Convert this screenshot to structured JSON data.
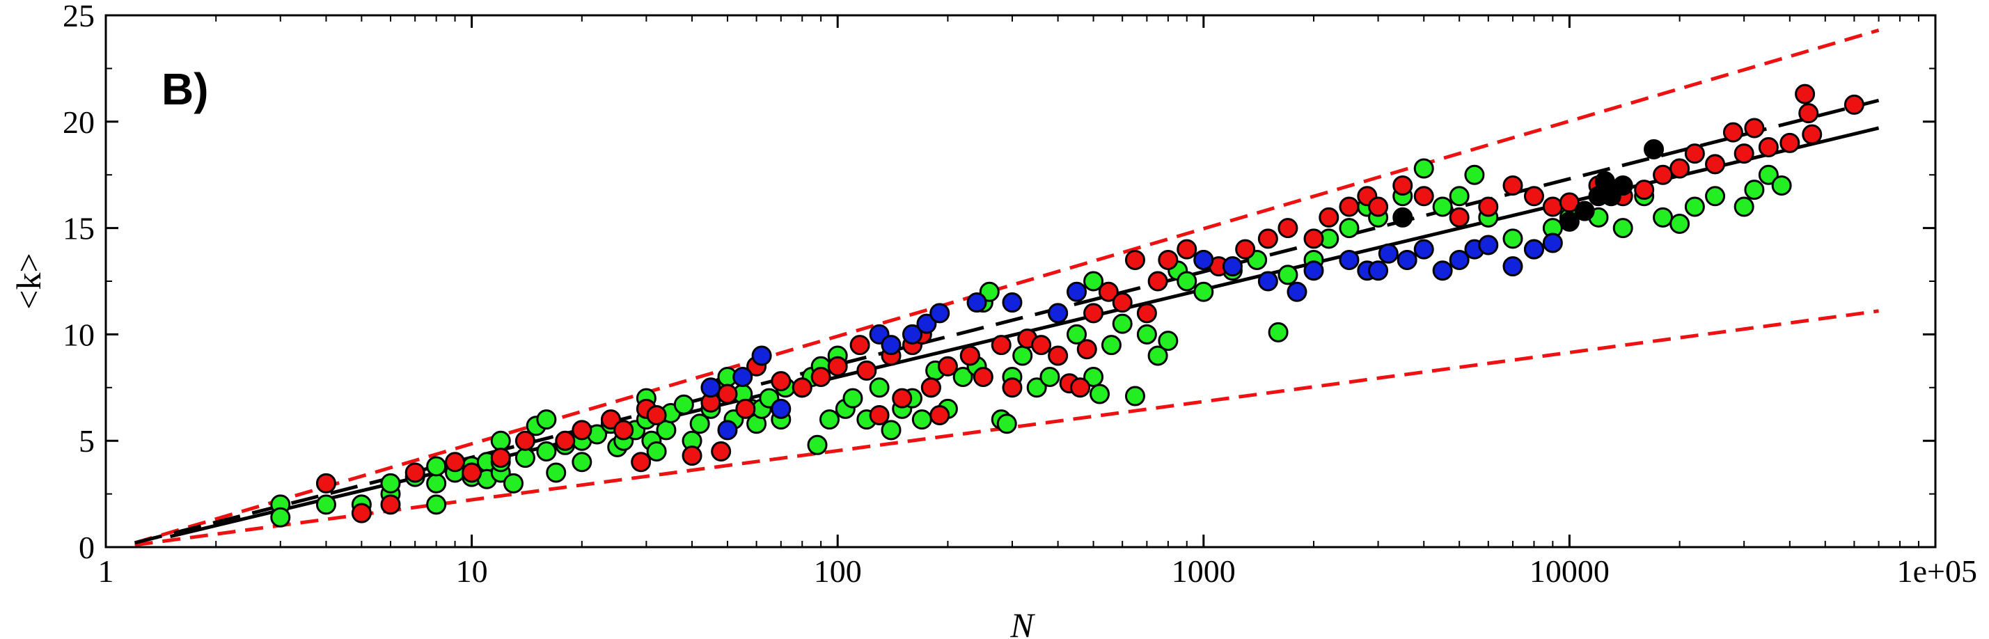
{
  "chart_data": {
    "type": "scatter",
    "panel_label": "B)",
    "xlabel": "N",
    "ylabel": "<k>",
    "x_scale": "log",
    "xlim": [
      1,
      100000
    ],
    "ylim": [
      0,
      25
    ],
    "x_ticks": [
      1,
      10,
      100,
      1000,
      10000,
      100000
    ],
    "x_tick_labels": [
      "1",
      "10",
      "100",
      "1000",
      "10000",
      "1e+05"
    ],
    "y_ticks": [
      0,
      5,
      10,
      15,
      20,
      25
    ],
    "y_tick_labels": [
      "0",
      "5",
      "10",
      "15",
      "20",
      "25"
    ],
    "grid": false,
    "colors": {
      "red": "#ee1111",
      "green": "#22ee22",
      "blue": "#1122dd",
      "black": "#000000",
      "dashed_red": "#ee1111"
    },
    "lines": [
      {
        "style": "dashed-red",
        "x": [
          1.2,
          70000
        ],
        "y": [
          0.2,
          24.3
        ]
      },
      {
        "style": "dashed-red",
        "x": [
          1.2,
          70000
        ],
        "y": [
          0.1,
          11.1
        ]
      },
      {
        "style": "dashed-black",
        "x": [
          1.2,
          70000
        ],
        "y": [
          0.2,
          21.0
        ]
      },
      {
        "style": "solid-black",
        "x": [
          1.5,
          70000
        ],
        "y": [
          0.5,
          19.7
        ]
      }
    ],
    "series": [
      {
        "color": "green",
        "points": [
          [
            3,
            2.0
          ],
          [
            3,
            1.4
          ],
          [
            4,
            2.0
          ],
          [
            5,
            2.0
          ],
          [
            6,
            2.5
          ],
          [
            6,
            3.0
          ],
          [
            7,
            3.3
          ],
          [
            8,
            2.0
          ],
          [
            8,
            3.0
          ],
          [
            8,
            3.8
          ],
          [
            9,
            3.5
          ],
          [
            10,
            3.3
          ],
          [
            10,
            3.8
          ],
          [
            11,
            4.0
          ],
          [
            11,
            3.2
          ],
          [
            12,
            3.5
          ],
          [
            12,
            4.0
          ],
          [
            12,
            5.0
          ],
          [
            13,
            3.0
          ],
          [
            14,
            4.2
          ],
          [
            15,
            5.7
          ],
          [
            16,
            6.0
          ],
          [
            16,
            4.5
          ],
          [
            17,
            3.5
          ],
          [
            18,
            4.8
          ],
          [
            20,
            4.0
          ],
          [
            20,
            5.0
          ],
          [
            22,
            5.3
          ],
          [
            24,
            5.8
          ],
          [
            25,
            4.7
          ],
          [
            26,
            5.0
          ],
          [
            28,
            5.5
          ],
          [
            30,
            6.0
          ],
          [
            30,
            7.0
          ],
          [
            31,
            5.0
          ],
          [
            32,
            4.5
          ],
          [
            34,
            5.5
          ],
          [
            35,
            6.3
          ],
          [
            38,
            6.7
          ],
          [
            40,
            5.0
          ],
          [
            42,
            5.8
          ],
          [
            45,
            6.5
          ],
          [
            48,
            7.5
          ],
          [
            50,
            8.0
          ],
          [
            52,
            6.0
          ],
          [
            55,
            7.2
          ],
          [
            58,
            6.5
          ],
          [
            60,
            5.8
          ],
          [
            62,
            6.5
          ],
          [
            65,
            7.0
          ],
          [
            70,
            6.0
          ],
          [
            72,
            7.5
          ],
          [
            80,
            7.5
          ],
          [
            85,
            8.0
          ],
          [
            88,
            4.8
          ],
          [
            90,
            8.5
          ],
          [
            95,
            6.0
          ],
          [
            100,
            9.0
          ],
          [
            105,
            6.5
          ],
          [
            110,
            7.0
          ],
          [
            120,
            6.0
          ],
          [
            130,
            7.5
          ],
          [
            140,
            5.5
          ],
          [
            150,
            6.5
          ],
          [
            160,
            7.0
          ],
          [
            170,
            6.0
          ],
          [
            180,
            7.5
          ],
          [
            185,
            8.3
          ],
          [
            200,
            6.5
          ],
          [
            220,
            8.0
          ],
          [
            230,
            9.0
          ],
          [
            240,
            8.5
          ],
          [
            250,
            11.5
          ],
          [
            260,
            12.0
          ],
          [
            280,
            6.0
          ],
          [
            290,
            5.8
          ],
          [
            300,
            8.0
          ],
          [
            320,
            9.0
          ],
          [
            350,
            7.5
          ],
          [
            380,
            8.0
          ],
          [
            400,
            11.0
          ],
          [
            450,
            10.0
          ],
          [
            500,
            8.0
          ],
          [
            500,
            12.5
          ],
          [
            520,
            7.2
          ],
          [
            560,
            9.5
          ],
          [
            600,
            10.5
          ],
          [
            650,
            7.1
          ],
          [
            700,
            10.0
          ],
          [
            750,
            9.0
          ],
          [
            800,
            9.7
          ],
          [
            850,
            13.0
          ],
          [
            900,
            12.5
          ],
          [
            1000,
            12.0
          ],
          [
            1200,
            13.0
          ],
          [
            1400,
            13.5
          ],
          [
            1600,
            10.1
          ],
          [
            1700,
            12.8
          ],
          [
            2000,
            13.5
          ],
          [
            2200,
            14.5
          ],
          [
            2500,
            15.0
          ],
          [
            2800,
            16.0
          ],
          [
            3000,
            15.5
          ],
          [
            3500,
            16.5
          ],
          [
            4000,
            17.8
          ],
          [
            4500,
            16.0
          ],
          [
            5000,
            16.5
          ],
          [
            5500,
            17.5
          ],
          [
            6000,
            15.5
          ],
          [
            7000,
            14.5
          ],
          [
            8000,
            14.0
          ],
          [
            9000,
            15.0
          ],
          [
            10000,
            15.5
          ],
          [
            12000,
            15.5
          ],
          [
            14000,
            15.0
          ],
          [
            16000,
            16.5
          ],
          [
            18000,
            15.5
          ],
          [
            20000,
            15.2
          ],
          [
            22000,
            16.0
          ],
          [
            25000,
            16.5
          ],
          [
            30000,
            16.0
          ],
          [
            32000,
            16.8
          ],
          [
            35000,
            17.5
          ],
          [
            38000,
            17.0
          ]
        ]
      },
      {
        "color": "red",
        "points": [
          [
            4,
            3.0
          ],
          [
            5,
            1.6
          ],
          [
            6,
            2.0
          ],
          [
            7,
            3.5
          ],
          [
            9,
            4.0
          ],
          [
            10,
            3.5
          ],
          [
            12,
            4.2
          ],
          [
            14,
            5.0
          ],
          [
            18,
            5.0
          ],
          [
            20,
            5.5
          ],
          [
            24,
            6.0
          ],
          [
            26,
            5.5
          ],
          [
            29,
            4.0
          ],
          [
            30,
            6.5
          ],
          [
            32,
            6.2
          ],
          [
            40,
            4.3
          ],
          [
            45,
            6.8
          ],
          [
            48,
            4.5
          ],
          [
            50,
            7.2
          ],
          [
            56,
            6.5
          ],
          [
            60,
            8.5
          ],
          [
            70,
            7.8
          ],
          [
            80,
            7.5
          ],
          [
            90,
            8.0
          ],
          [
            100,
            8.5
          ],
          [
            115,
            9.5
          ],
          [
            120,
            8.3
          ],
          [
            130,
            6.2
          ],
          [
            140,
            9.0
          ],
          [
            150,
            7.0
          ],
          [
            160,
            9.5
          ],
          [
            170,
            10.0
          ],
          [
            180,
            7.5
          ],
          [
            190,
            6.2
          ],
          [
            200,
            8.5
          ],
          [
            230,
            9.0
          ],
          [
            250,
            8.0
          ],
          [
            280,
            9.5
          ],
          [
            300,
            7.5
          ],
          [
            330,
            9.8
          ],
          [
            360,
            9.5
          ],
          [
            400,
            9.0
          ],
          [
            430,
            7.7
          ],
          [
            460,
            7.5
          ],
          [
            480,
            9.3
          ],
          [
            500,
            11.0
          ],
          [
            550,
            12.0
          ],
          [
            600,
            11.5
          ],
          [
            650,
            13.5
          ],
          [
            700,
            11.0
          ],
          [
            750,
            12.5
          ],
          [
            800,
            13.5
          ],
          [
            900,
            14.0
          ],
          [
            1000,
            13.5
          ],
          [
            1100,
            13.2
          ],
          [
            1300,
            14.0
          ],
          [
            1500,
            14.5
          ],
          [
            1700,
            15.0
          ],
          [
            2000,
            14.5
          ],
          [
            2200,
            15.5
          ],
          [
            2500,
            16.0
          ],
          [
            2800,
            16.5
          ],
          [
            3000,
            16.0
          ],
          [
            3500,
            17.0
          ],
          [
            4000,
            16.5
          ],
          [
            5000,
            15.5
          ],
          [
            6000,
            16.0
          ],
          [
            7000,
            17.0
          ],
          [
            8000,
            16.5
          ],
          [
            9000,
            16.0
          ],
          [
            10000,
            16.2
          ],
          [
            12000,
            17.0
          ],
          [
            14000,
            16.5
          ],
          [
            16000,
            16.8
          ],
          [
            18000,
            17.5
          ],
          [
            20000,
            17.8
          ],
          [
            22000,
            18.5
          ],
          [
            25000,
            18.0
          ],
          [
            28000,
            19.5
          ],
          [
            30000,
            18.5
          ],
          [
            32000,
            19.7
          ],
          [
            35000,
            18.8
          ],
          [
            40000,
            19.0
          ],
          [
            44000,
            21.3
          ],
          [
            45000,
            20.4
          ],
          [
            46000,
            19.4
          ],
          [
            60000,
            20.8
          ]
        ]
      },
      {
        "color": "blue",
        "points": [
          [
            45,
            7.5
          ],
          [
            50,
            5.5
          ],
          [
            55,
            8.0
          ],
          [
            62,
            9.0
          ],
          [
            70,
            6.5
          ],
          [
            130,
            10.0
          ],
          [
            140,
            9.5
          ],
          [
            160,
            10.0
          ],
          [
            175,
            10.5
          ],
          [
            190,
            11.0
          ],
          [
            240,
            11.5
          ],
          [
            300,
            11.5
          ],
          [
            400,
            11.0
          ],
          [
            450,
            12.0
          ],
          [
            1000,
            13.5
          ],
          [
            1200,
            13.2
          ],
          [
            1500,
            12.5
          ],
          [
            1800,
            12.0
          ],
          [
            2000,
            13.0
          ],
          [
            2500,
            13.5
          ],
          [
            2800,
            13.0
          ],
          [
            3000,
            13.0
          ],
          [
            3200,
            13.8
          ],
          [
            3600,
            13.5
          ],
          [
            4000,
            14.0
          ],
          [
            4500,
            13.0
          ],
          [
            5000,
            13.5
          ],
          [
            5500,
            14.0
          ],
          [
            6000,
            14.2
          ],
          [
            7000,
            13.2
          ],
          [
            8000,
            14.0
          ],
          [
            9000,
            14.3
          ]
        ]
      },
      {
        "color": "black",
        "points": [
          [
            3500,
            15.5
          ],
          [
            10000,
            15.3
          ],
          [
            11000,
            15.8
          ],
          [
            12000,
            16.5
          ],
          [
            12500,
            17.2
          ],
          [
            13000,
            16.5
          ],
          [
            14000,
            17.0
          ],
          [
            17000,
            18.7
          ]
        ]
      }
    ]
  }
}
